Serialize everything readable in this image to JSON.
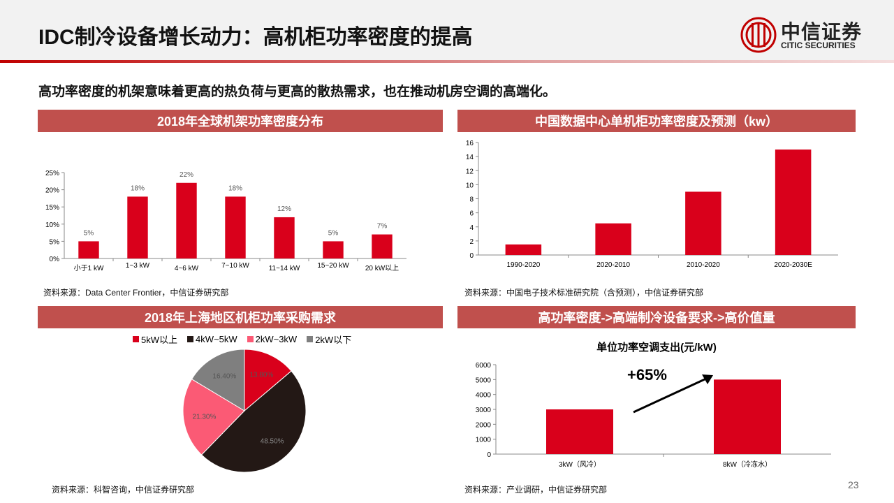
{
  "page": {
    "title": "IDC制冷设备增长动力：高机柜功率密度的提高",
    "lead": "高功率密度的机架意味着更高的热负荷与更高的散热需求，也在推动机房空调的高端化。",
    "page_number": "23"
  },
  "logo": {
    "cn": "中信证券",
    "en": "CITIC SECURITIES"
  },
  "panels": {
    "global_rack": {
      "title": "2018年全球机架功率密度分布",
      "source": "资料来源：Data Center Frontier，中信证券研究部"
    },
    "china_rack": {
      "title": "中国数据中心单机柜功率密度及预测（kw）",
      "source": "资料来源：中国电子技术标准研究院（含预测），中信证券研究部"
    },
    "shanghai": {
      "title": "2018年上海地区机柜功率采购需求",
      "source": "资料来源：科智咨询，中信证券研究部"
    },
    "cost": {
      "title": "高功率密度->高端制冷设备要求->高价值量",
      "source": "资料来源：产业调研，中信证券研究部",
      "growth_label": "+65%"
    }
  },
  "colors": {
    "red": "#d9001b",
    "panel_header": "#c0504d",
    "dark": "#231815",
    "pink": "#fb5a75",
    "gray": "#7f7f7f"
  },
  "chart_data": [
    {
      "type": "bar",
      "categories": [
        "小于1 kW",
        "1~3 kW",
        "4~6 kW",
        "7~10 kW",
        "11~14 kW",
        "15~20 kW",
        "20 kW以上"
      ],
      "values": [
        5,
        18,
        22,
        18,
        12,
        5,
        7
      ],
      "data_labels": [
        "5%",
        "18%",
        "22%",
        "18%",
        "12%",
        "5%",
        "7%"
      ],
      "yticks": [
        "0%",
        "5%",
        "10%",
        "15%",
        "20%",
        "25%"
      ],
      "ylim": [
        0,
        25
      ],
      "color": "#d9001b"
    },
    {
      "type": "bar",
      "categories": [
        "1990-2020",
        "2020-2010",
        "2010-2020",
        "2020-2030E"
      ],
      "values": [
        1.5,
        4.5,
        9,
        15
      ],
      "yticks": [
        "0",
        "2",
        "4",
        "6",
        "8",
        "10",
        "12",
        "14",
        "16"
      ],
      "ylim": [
        0,
        16
      ],
      "color": "#d9001b"
    },
    {
      "type": "pie",
      "labels": [
        "5kW以上",
        "4kW~5kW",
        "2kW~3kW",
        "2kW以下"
      ],
      "values": [
        13.8,
        48.5,
        21.3,
        16.4
      ],
      "data_labels": [
        "13.80%",
        "48.50%",
        "21.30%",
        "16.40%"
      ],
      "colors": [
        "#d9001b",
        "#231815",
        "#fb5a75",
        "#7f7f7f"
      ],
      "legend": "top"
    },
    {
      "type": "bar",
      "title": "单位功率空调支出(元/kW)",
      "categories": [
        "3kW（风冷）",
        "8kW（冷冻水）"
      ],
      "values": [
        3000,
        5000
      ],
      "yticks": [
        "0",
        "1000",
        "2000",
        "3000",
        "4000",
        "5000",
        "6000"
      ],
      "ylim": [
        0,
        6000
      ],
      "color": "#d9001b"
    }
  ]
}
